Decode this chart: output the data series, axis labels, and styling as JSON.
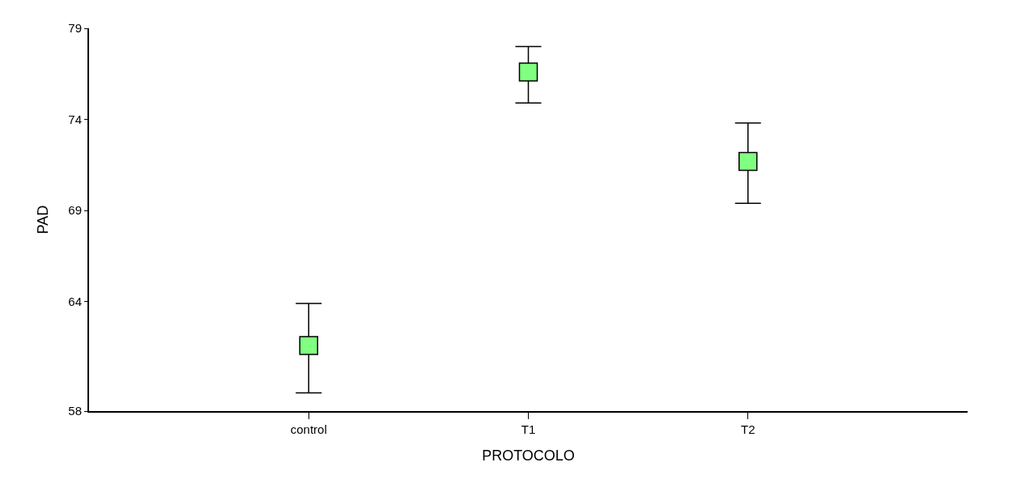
{
  "chart_data": {
    "type": "scatter",
    "xlabel": "PROTOCOLO",
    "ylabel": "PAD",
    "categories": [
      "control",
      "T1",
      "T2"
    ],
    "values": [
      61.6,
      76.6,
      71.7
    ],
    "errors": [
      [
        59.0,
        63.9
      ],
      [
        74.9,
        78.0
      ],
      [
        69.4,
        73.8
      ]
    ],
    "color": "#80ff80",
    "marker": "square",
    "ylim": [
      58,
      79
    ],
    "yticks": [
      58,
      64,
      69,
      74,
      79
    ]
  }
}
